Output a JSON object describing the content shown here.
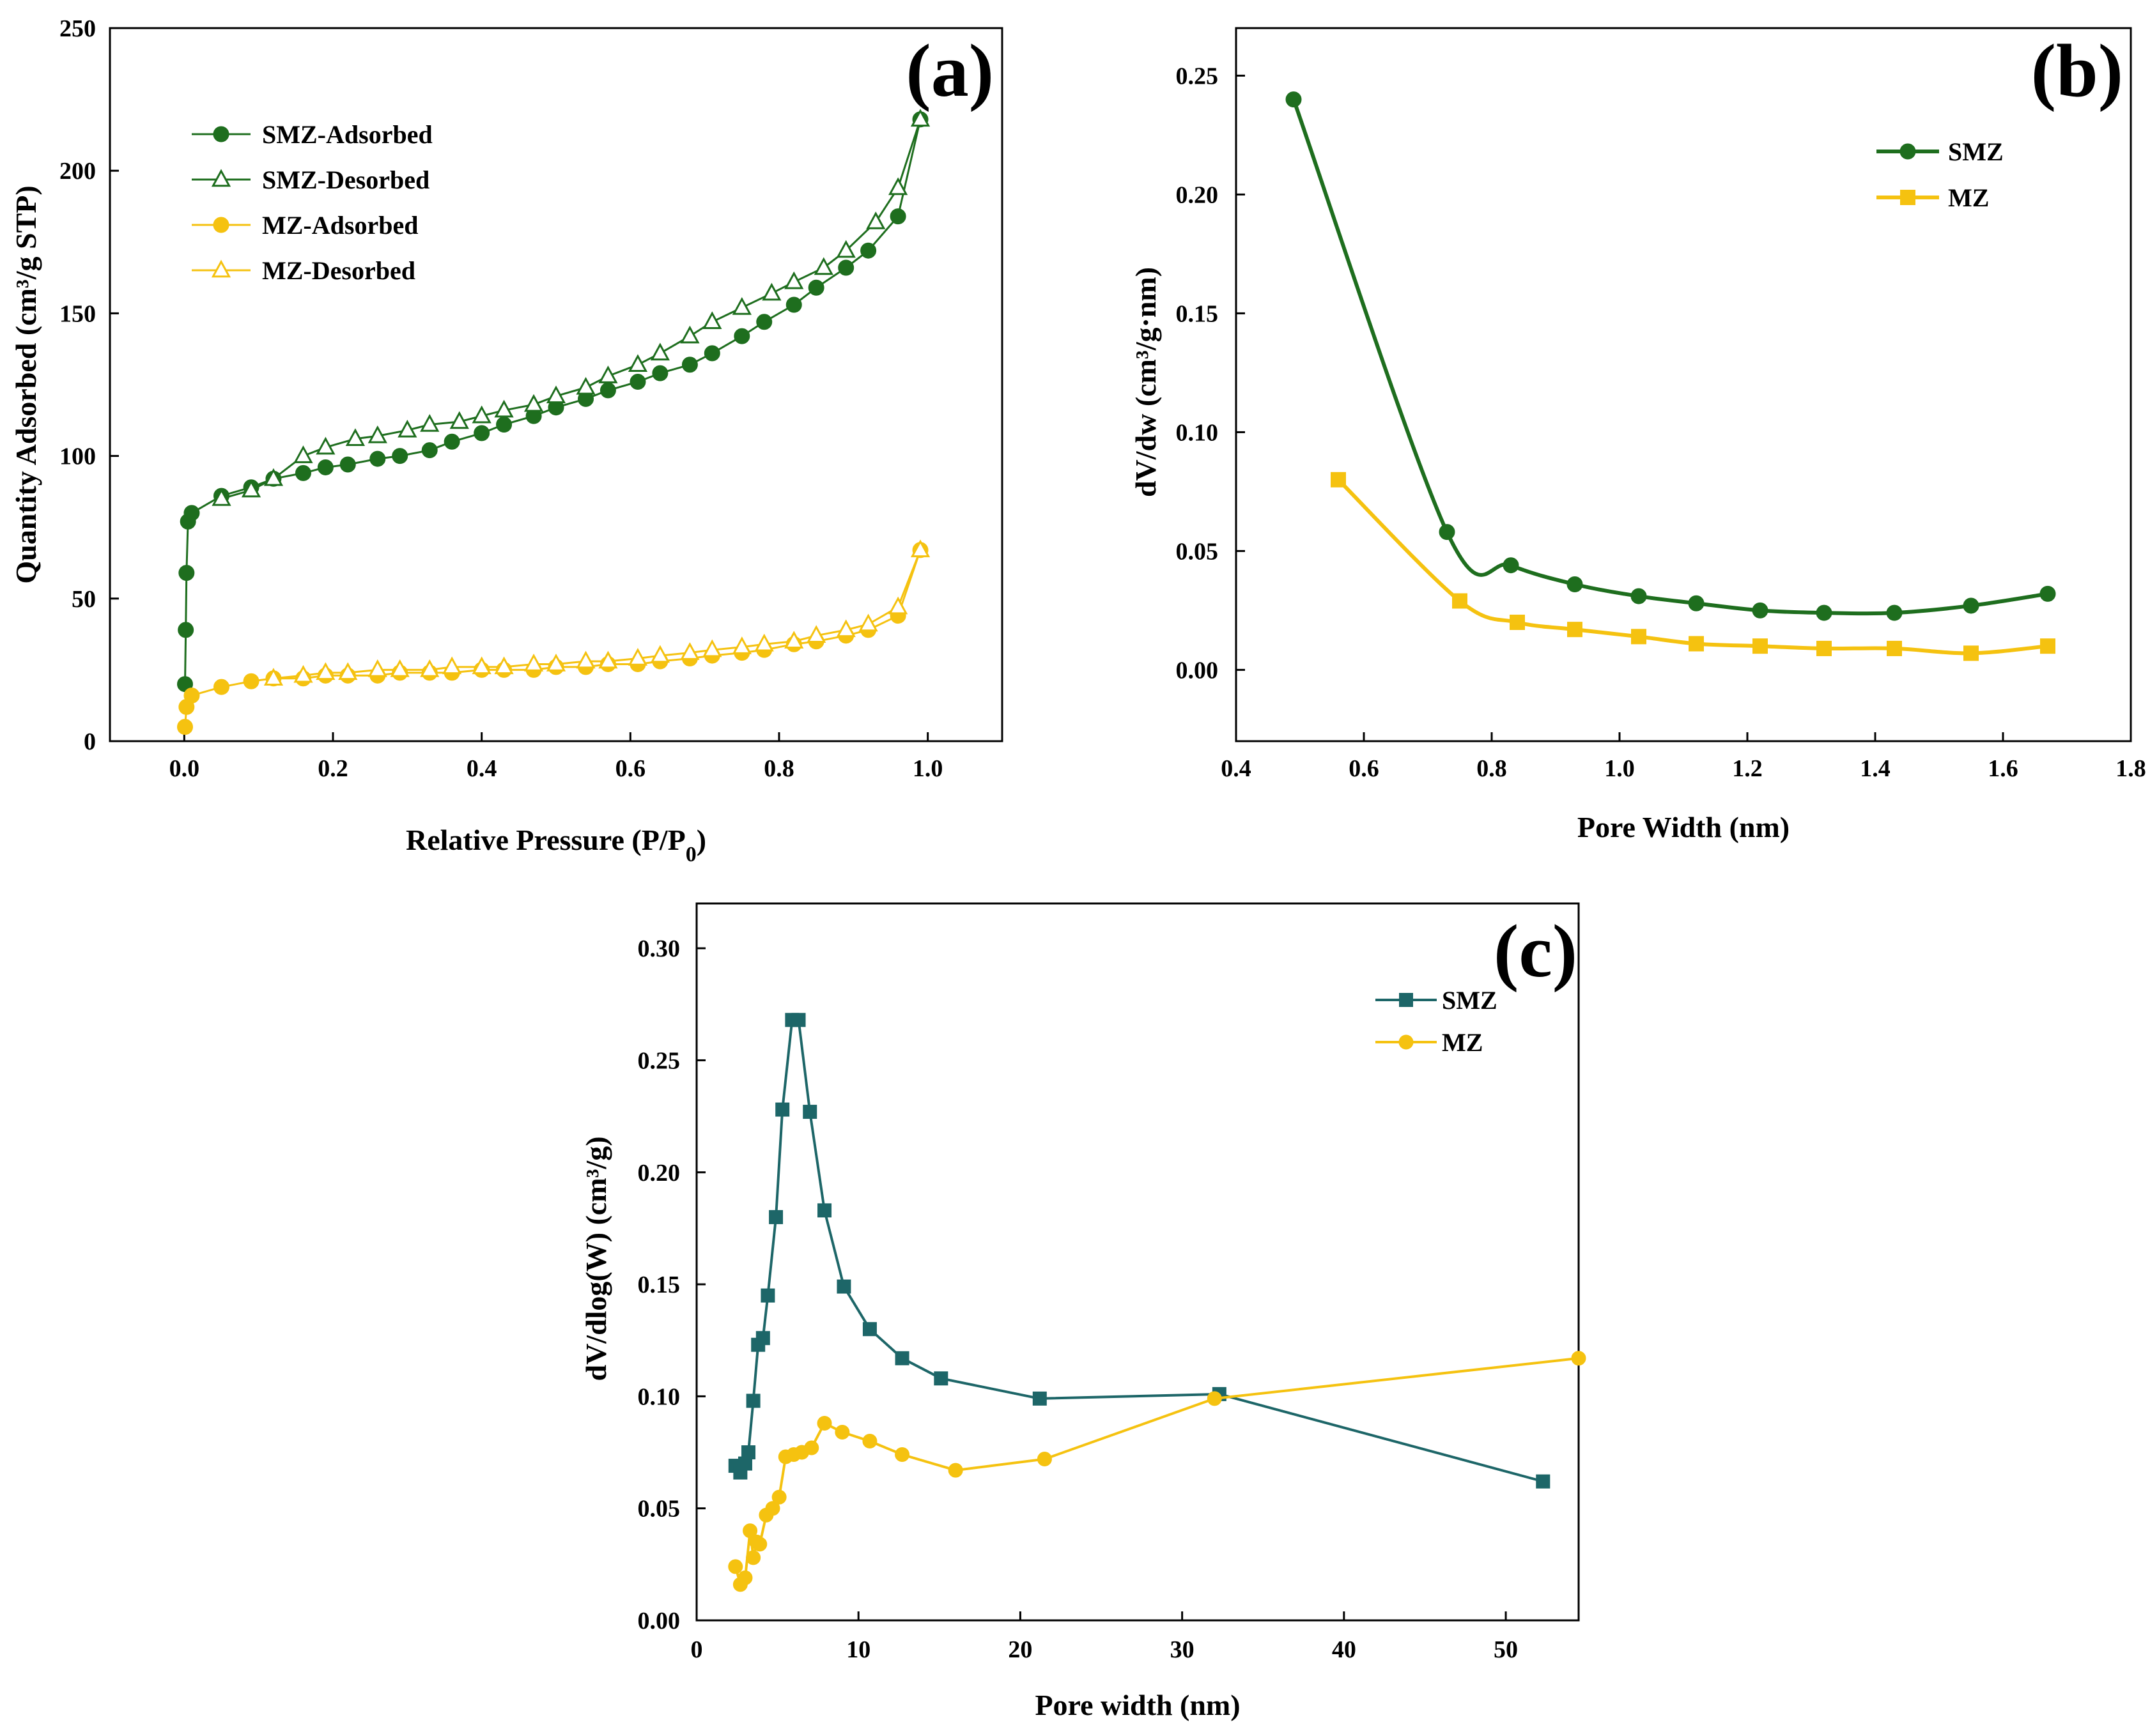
{
  "colors": {
    "smz_a": "#1e6e1e",
    "mz": "#f5c210",
    "smz_c": "#1d6668"
  },
  "chart_data": [
    {
      "panel": "(a)",
      "type": "line",
      "xlabel": "Relative Pressure (P/P",
      "xlabel_sub": "0",
      "xlabel_close": ")",
      "ylabel": "Quantity Adsorbed (cm³/g STP)",
      "xlim": [
        -0.1,
        1.1
      ],
      "ylim": [
        0,
        250
      ],
      "xticks": [
        0.0,
        0.2,
        0.4,
        0.6,
        0.8,
        1.0
      ],
      "xtick_labels": [
        "0.0",
        "0.2",
        "0.4",
        "0.6",
        "0.8",
        "1.0"
      ],
      "yticks": [
        0,
        50,
        100,
        150,
        200,
        250
      ],
      "ytick_labels": [
        "0",
        "50",
        "100",
        "150",
        "200",
        "250"
      ],
      "legend_position": "upper-left",
      "series": [
        {
          "name": "SMZ-Adsorbed",
          "color_key": "smz_a",
          "marker": "circle-filled",
          "x": [
            0.001,
            0.002,
            0.003,
            0.005,
            0.01,
            0.05,
            0.09,
            0.12,
            0.16,
            0.19,
            0.22,
            0.26,
            0.29,
            0.33,
            0.36,
            0.4,
            0.43,
            0.47,
            0.5,
            0.54,
            0.57,
            0.61,
            0.64,
            0.68,
            0.71,
            0.75,
            0.78,
            0.82,
            0.85,
            0.89,
            0.92,
            0.96,
            0.99
          ],
          "y": [
            20,
            39,
            59,
            77,
            80,
            86,
            89,
            92,
            94,
            96,
            97,
            99,
            100,
            102,
            105,
            108,
            111,
            114,
            117,
            120,
            123,
            126,
            129,
            132,
            136,
            142,
            147,
            153,
            159,
            166,
            172,
            184,
            218
          ]
        },
        {
          "name": "SMZ-Desorbed",
          "color_key": "smz_a",
          "marker": "triangle-open",
          "x": [
            0.99,
            0.96,
            0.93,
            0.89,
            0.86,
            0.82,
            0.79,
            0.75,
            0.71,
            0.68,
            0.64,
            0.61,
            0.57,
            0.54,
            0.5,
            0.47,
            0.43,
            0.4,
            0.37,
            0.33,
            0.3,
            0.26,
            0.23,
            0.19,
            0.16,
            0.12,
            0.09,
            0.05
          ],
          "y": [
            218,
            194,
            182,
            172,
            166,
            161,
            157,
            152,
            147,
            142,
            136,
            132,
            128,
            124,
            121,
            118,
            116,
            114,
            112,
            111,
            109,
            107,
            106,
            103,
            100,
            92,
            88,
            85
          ]
        },
        {
          "name": "MZ-Adsorbed",
          "color_key": "mz",
          "marker": "circle-filled",
          "x": [
            0.001,
            0.003,
            0.01,
            0.05,
            0.09,
            0.12,
            0.16,
            0.19,
            0.22,
            0.26,
            0.29,
            0.33,
            0.36,
            0.4,
            0.43,
            0.47,
            0.5,
            0.54,
            0.57,
            0.61,
            0.64,
            0.68,
            0.71,
            0.75,
            0.78,
            0.82,
            0.85,
            0.89,
            0.92,
            0.96,
            0.99
          ],
          "y": [
            5,
            12,
            16,
            19,
            21,
            22,
            22,
            23,
            23,
            23,
            24,
            24,
            24,
            25,
            25,
            25,
            26,
            26,
            27,
            27,
            28,
            29,
            30,
            31,
            32,
            34,
            35,
            37,
            39,
            44,
            67
          ]
        },
        {
          "name": "MZ-Desorbed",
          "color_key": "mz",
          "marker": "triangle-open",
          "x": [
            0.99,
            0.96,
            0.92,
            0.89,
            0.85,
            0.82,
            0.78,
            0.75,
            0.71,
            0.68,
            0.64,
            0.61,
            0.57,
            0.54,
            0.5,
            0.47,
            0.43,
            0.4,
            0.36,
            0.33,
            0.29,
            0.26,
            0.22,
            0.19,
            0.16,
            0.12
          ],
          "y": [
            67,
            47,
            41,
            39,
            37,
            35,
            34,
            33,
            32,
            31,
            30,
            29,
            28,
            28,
            27,
            27,
            26,
            26,
            26,
            25,
            25,
            25,
            24,
            24,
            23,
            22
          ]
        }
      ]
    },
    {
      "panel": "(b)",
      "type": "line",
      "xlabel": "Pore Width (nm)",
      "ylabel": "dV/dw (cm³/g·nm)",
      "xlim": [
        0.4,
        1.8
      ],
      "ylim": [
        -0.03,
        0.27
      ],
      "xticks": [
        0.4,
        0.6,
        0.8,
        1.0,
        1.2,
        1.4,
        1.6,
        1.8
      ],
      "xtick_labels": [
        "0.4",
        "0.6",
        "0.8",
        "1.0",
        "1.2",
        "1.4",
        "1.6",
        "1.8"
      ],
      "yticks": [
        0.0,
        0.05,
        0.1,
        0.15,
        0.2,
        0.25
      ],
      "ytick_labels": [
        "0.00",
        "0.05",
        "0.10",
        "0.15",
        "0.20",
        "0.25"
      ],
      "legend_position": "upper-right",
      "series": [
        {
          "name": "SMZ",
          "color_key": "smz_a",
          "marker": "circle-filled",
          "x": [
            0.49,
            0.73,
            0.83,
            0.93,
            1.03,
            1.12,
            1.22,
            1.32,
            1.43,
            1.55,
            1.67
          ],
          "y": [
            0.24,
            0.058,
            0.044,
            0.036,
            0.031,
            0.028,
            0.025,
            0.024,
            0.024,
            0.027,
            0.032
          ]
        },
        {
          "name": "MZ",
          "color_key": "mz",
          "marker": "square-filled",
          "x": [
            0.56,
            0.75,
            0.84,
            0.93,
            1.03,
            1.12,
            1.22,
            1.32,
            1.43,
            1.55,
            1.67
          ],
          "y": [
            0.08,
            0.029,
            0.02,
            0.017,
            0.014,
            0.011,
            0.01,
            0.009,
            0.009,
            0.007,
            0.01
          ]
        }
      ]
    },
    {
      "panel": "(c)",
      "type": "line",
      "xlabel": "Pore width (nm)",
      "ylabel": "dV/dlog(W) (cm³/g)",
      "xlim": [
        0,
        54.5
      ],
      "ylim": [
        0,
        0.32
      ],
      "xticks": [
        0,
        10,
        20,
        30,
        40,
        50
      ],
      "xtick_labels": [
        "0",
        "10",
        "20",
        "30",
        "40",
        "50"
      ],
      "yticks": [
        0.0,
        0.05,
        0.1,
        0.15,
        0.2,
        0.25,
        0.3
      ],
      "ytick_labels": [
        "0.00",
        "0.05",
        "0.10",
        "0.15",
        "0.20",
        "0.25",
        "0.30"
      ],
      "legend_position": "upper-right",
      "series": [
        {
          "name": "SMZ",
          "color_key": "smz_c",
          "marker": "square-filled",
          "x": [
            2.4,
            2.7,
            3.0,
            3.2,
            3.5,
            3.8,
            4.1,
            4.4,
            4.9,
            5.3,
            5.9,
            6.3,
            7.0,
            7.9,
            9.1,
            10.7,
            12.7,
            15.1,
            21.2,
            32.3,
            52.3
          ],
          "y": [
            0.069,
            0.066,
            0.07,
            0.075,
            0.098,
            0.123,
            0.126,
            0.145,
            0.18,
            0.228,
            0.268,
            0.268,
            0.227,
            0.183,
            0.149,
            0.13,
            0.117,
            0.108,
            0.099,
            0.101,
            0.062
          ]
        },
        {
          "name": "MZ",
          "color_key": "mz",
          "marker": "circle-filled",
          "x": [
            2.4,
            2.7,
            3.0,
            3.3,
            3.5,
            3.7,
            3.9,
            4.3,
            4.7,
            5.1,
            5.5,
            6.0,
            6.5,
            7.1,
            7.9,
            9.0,
            10.7,
            12.7,
            16.0,
            21.5,
            32.0,
            54.5
          ],
          "y": [
            0.024,
            0.016,
            0.019,
            0.04,
            0.028,
            0.035,
            0.034,
            0.047,
            0.05,
            0.055,
            0.073,
            0.074,
            0.075,
            0.077,
            0.088,
            0.084,
            0.08,
            0.074,
            0.067,
            0.072,
            0.099,
            0.117
          ]
        }
      ]
    }
  ]
}
